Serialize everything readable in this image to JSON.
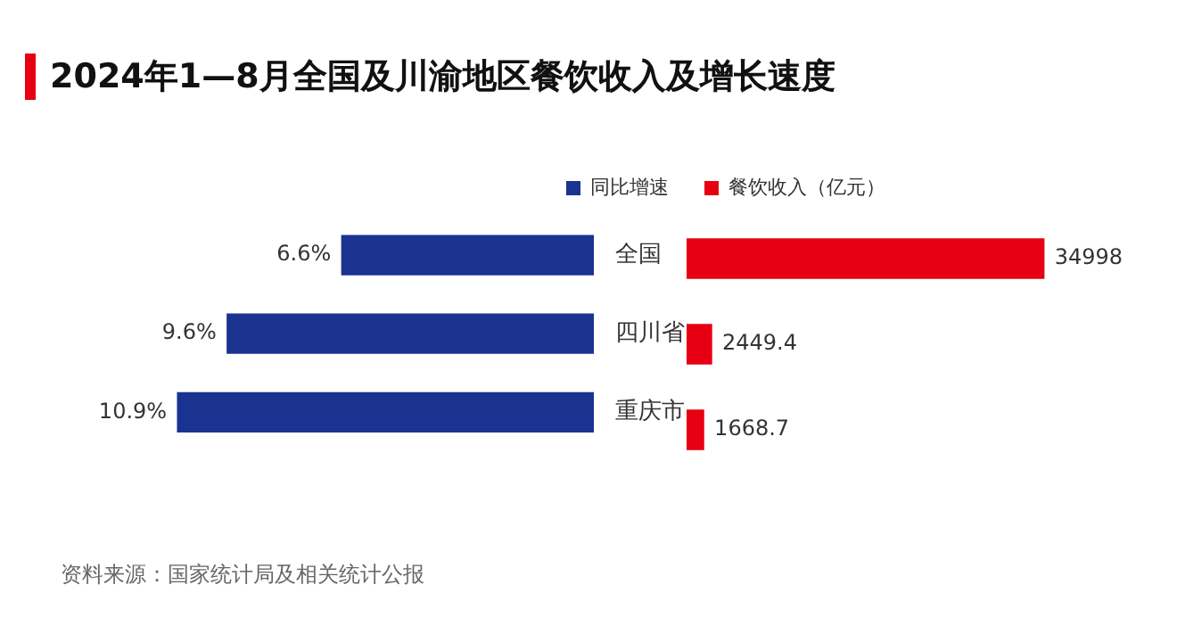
{
  "chart_data": [
    {
      "type": "bar",
      "orientation": "horizontal",
      "title": "2024年1—8月全国及川渝地区餐饮收入及增长速度",
      "annotations": [
        "资料来源：国家统计局及相关统计公报"
      ],
      "categories": [
        "全国",
        "四川省",
        "重庆市"
      ],
      "series": [
        {
          "name": "同比增速",
          "color": "#1a3391",
          "values": [
            6.6,
            9.6,
            10.9
          ],
          "value_labels": [
            "6.6%",
            "9.6%",
            "10.9%"
          ]
        }
      ],
      "tick_labels": "y",
      "legend": "top right"
    },
    {
      "type": "bar",
      "orientation": "horizontal",
      "categories": [
        null,
        null,
        null
      ],
      "series": [
        {
          "name": "餐饮收入（亿元）",
          "color": "#e60012",
          "values": [
            34998,
            2449.4,
            1668.7
          ]
        }
      ],
      "tick_labels": false,
      "legend": "top left",
      "data_labels": true
    }
  ]
}
